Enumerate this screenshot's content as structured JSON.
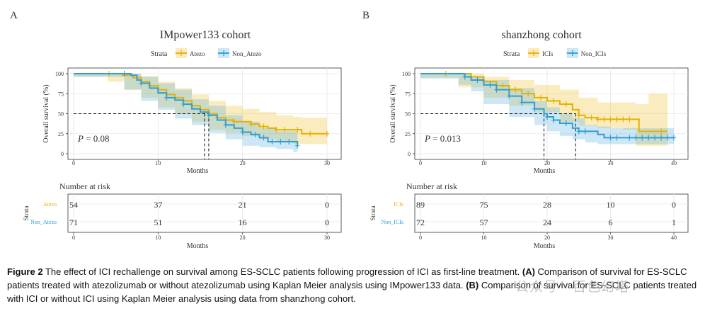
{
  "colors": {
    "atezo": "#E6B000",
    "non_atezo": "#2E9FD6",
    "fill_atezo": "rgba(240,200,70,0.35)",
    "fill_non": "rgba(90,175,225,0.30)",
    "grid": "#e6e6e6"
  },
  "panels": [
    {
      "letter": "A",
      "title": "IMpower133 cohort",
      "strata_label": "Strata",
      "p_label": "P",
      "p_value": "= 0.08",
      "risk_title": "Number at risk",
      "risk_strata_label": "Strata"
    },
    {
      "letter": "B",
      "title": "shanzhong cohort",
      "strata_label": "Strata",
      "p_label": "P",
      "p_value": "= 0.013",
      "risk_title": "Number at risk",
      "risk_strata_label": "Strata"
    }
  ],
  "chart_data": [
    {
      "type": "line",
      "subtype": "kaplan-meier",
      "title": "IMpower133 cohort",
      "xlabel": "Months",
      "ylabel": "Overall survival (%)",
      "xlim": [
        0,
        30
      ],
      "ylim": [
        0,
        100
      ],
      "xticks": [
        0,
        10,
        20,
        30
      ],
      "yticks": [
        0,
        25,
        50,
        75,
        100
      ],
      "grid": true,
      "legend": "top",
      "median": [
        {
          "series": "Atezo",
          "x": 16.0
        },
        {
          "series": "Non_Atezo",
          "x": 15.5
        }
      ],
      "series": [
        {
          "name": "Atezo",
          "color_key": "atezo",
          "points": [
            [
              0,
              100
            ],
            [
              4,
              100
            ],
            [
              5.8,
              98
            ],
            [
              7,
              95
            ],
            [
              8,
              90
            ],
            [
              9,
              85
            ],
            [
              10,
              80
            ],
            [
              11,
              74
            ],
            [
              12,
              70
            ],
            [
              13,
              66
            ],
            [
              14,
              60
            ],
            [
              15,
              55
            ],
            [
              16,
              50
            ],
            [
              17,
              45
            ],
            [
              18,
              42
            ],
            [
              19,
              40
            ],
            [
              20,
              40
            ],
            [
              21,
              37
            ],
            [
              22,
              34
            ],
            [
              23,
              32
            ],
            [
              24,
              30
            ],
            [
              26,
              30
            ],
            [
              27,
              25
            ],
            [
              30,
              25
            ]
          ],
          "ci_upper": [
            [
              0,
              100
            ],
            [
              4,
              100
            ],
            [
              6,
              100
            ],
            [
              8,
              97
            ],
            [
              10,
              90
            ],
            [
              12,
              82
            ],
            [
              14,
              74
            ],
            [
              16,
              66
            ],
            [
              18,
              60
            ],
            [
              20,
              56
            ],
            [
              22,
              52
            ],
            [
              24,
              48
            ],
            [
              26,
              46
            ],
            [
              27,
              45
            ],
            [
              30,
              45
            ]
          ],
          "ci_lower": [
            [
              0,
              100
            ],
            [
              4,
              96
            ],
            [
              6,
              90
            ],
            [
              8,
              80
            ],
            [
              10,
              70
            ],
            [
              12,
              58
            ],
            [
              14,
              50
            ],
            [
              16,
              40
            ],
            [
              18,
              30
            ],
            [
              20,
              26
            ],
            [
              22,
              22
            ],
            [
              24,
              18
            ],
            [
              26,
              15
            ],
            [
              27,
              12
            ],
            [
              30,
              12
            ]
          ],
          "censor_x": [
            4.2,
            9,
            12,
            14,
            17,
            19,
            21,
            22.5,
            24,
            25,
            26.5,
            28,
            30
          ]
        },
        {
          "name": "Non_Atezo",
          "color_key": "non_atezo",
          "points": [
            [
              0,
              100
            ],
            [
              6,
              100
            ],
            [
              6.8,
              98
            ],
            [
              7.5,
              92
            ],
            [
              8,
              88
            ],
            [
              9,
              82
            ],
            [
              10,
              76
            ],
            [
              11,
              70
            ],
            [
              12,
              67
            ],
            [
              13,
              62
            ],
            [
              14,
              56
            ],
            [
              15,
              52
            ],
            [
              16,
              48
            ],
            [
              17,
              42
            ],
            [
              18,
              36
            ],
            [
              19,
              32
            ],
            [
              20,
              27
            ],
            [
              21,
              24
            ],
            [
              22,
              20
            ],
            [
              23,
              15
            ],
            [
              24,
              15
            ],
            [
              25,
              15
            ],
            [
              26,
              15
            ],
            [
              26.5,
              10
            ]
          ],
          "ci_upper": [
            [
              0,
              100
            ],
            [
              6,
              100
            ],
            [
              8,
              96
            ],
            [
              10,
              88
            ],
            [
              12,
              80
            ],
            [
              14,
              68
            ],
            [
              16,
              60
            ],
            [
              18,
              48
            ],
            [
              20,
              40
            ],
            [
              22,
              32
            ],
            [
              24,
              28
            ],
            [
              26,
              28
            ],
            [
              26.5,
              22
            ]
          ],
          "ci_lower": [
            [
              0,
              100
            ],
            [
              6,
              96
            ],
            [
              8,
              80
            ],
            [
              10,
              66
            ],
            [
              12,
              55
            ],
            [
              14,
              44
            ],
            [
              16,
              36
            ],
            [
              18,
              26
            ],
            [
              20,
              18
            ],
            [
              22,
              10
            ],
            [
              24,
              8
            ],
            [
              26,
              6
            ],
            [
              26.5,
              2
            ]
          ],
          "censor_x": [
            6,
            8,
            11,
            13,
            16,
            18,
            20,
            21.5,
            22.5,
            23.5,
            24.5,
            25.5,
            26.5
          ]
        }
      ],
      "risk_table": {
        "title": "Number at risk",
        "xticks": [
          0,
          10,
          20,
          30
        ],
        "rows": [
          {
            "strata": "Atezo",
            "values": [
              "54",
              "37",
              "21",
              "0"
            ]
          },
          {
            "strata": "Non_Atezo",
            "values": [
              "71",
              "51",
              "16",
              "0"
            ]
          }
        ]
      }
    },
    {
      "type": "line",
      "subtype": "kaplan-meier",
      "title": "shanzhong cohort",
      "xlabel": "Months",
      "ylabel": "Overall survival (%)",
      "xlim": [
        0,
        40
      ],
      "ylim": [
        0,
        100
      ],
      "xticks": [
        0,
        10,
        20,
        30,
        40
      ],
      "yticks": [
        0,
        25,
        50,
        75,
        100
      ],
      "grid": true,
      "legend": "top",
      "median": [
        {
          "series": "ICIs",
          "x": 24.5
        },
        {
          "series": "Non_ICIs",
          "x": 19.5
        }
      ],
      "series": [
        {
          "name": "ICIs",
          "color_key": "atezo",
          "points": [
            [
              0,
              100
            ],
            [
              6,
              100
            ],
            [
              8,
              96
            ],
            [
              10,
              90
            ],
            [
              12,
              85
            ],
            [
              14,
              80
            ],
            [
              16,
              75
            ],
            [
              18,
              70
            ],
            [
              20,
              66
            ],
            [
              22,
              62
            ],
            [
              24,
              55
            ],
            [
              25,
              48
            ],
            [
              26,
              45
            ],
            [
              28,
              43
            ],
            [
              30,
              43
            ],
            [
              34,
              43
            ],
            [
              34.5,
              28
            ],
            [
              39,
              28
            ]
          ],
          "ci_upper": [
            [
              0,
              100
            ],
            [
              6,
              100
            ],
            [
              10,
              96
            ],
            [
              14,
              92
            ],
            [
              18,
              86
            ],
            [
              22,
              80
            ],
            [
              25,
              70
            ],
            [
              28,
              64
            ],
            [
              32,
              64
            ],
            [
              34,
              62
            ],
            [
              36,
              75
            ],
            [
              39,
              75
            ]
          ],
          "ci_lower": [
            [
              0,
              100
            ],
            [
              6,
              95
            ],
            [
              10,
              83
            ],
            [
              14,
              70
            ],
            [
              18,
              60
            ],
            [
              22,
              52
            ],
            [
              25,
              40
            ],
            [
              28,
              35
            ],
            [
              32,
              32
            ],
            [
              34,
              30
            ],
            [
              36,
              10
            ],
            [
              39,
              10
            ]
          ],
          "censor_x": [
            4,
            8,
            10,
            13,
            15,
            17,
            19,
            21,
            23,
            25,
            27,
            28,
            29,
            30,
            31,
            32,
            33,
            38
          ]
        },
        {
          "name": "Non_ICIs",
          "color_key": "non_atezo",
          "points": [
            [
              0,
              100
            ],
            [
              6,
              100
            ],
            [
              7,
              96
            ],
            [
              8,
              92
            ],
            [
              10,
              86
            ],
            [
              12,
              80
            ],
            [
              14,
              72
            ],
            [
              16,
              64
            ],
            [
              18,
              56
            ],
            [
              19.5,
              50
            ],
            [
              20,
              46
            ],
            [
              21,
              42
            ],
            [
              22,
              38
            ],
            [
              24,
              32
            ],
            [
              25,
              28
            ],
            [
              28,
              24
            ],
            [
              29,
              20
            ],
            [
              32,
              20
            ],
            [
              40,
              20
            ]
          ],
          "ci_upper": [
            [
              0,
              100
            ],
            [
              6,
              100
            ],
            [
              8,
              96
            ],
            [
              10,
              92
            ],
            [
              14,
              82
            ],
            [
              18,
              66
            ],
            [
              20,
              58
            ],
            [
              22,
              50
            ],
            [
              24,
              44
            ],
            [
              26,
              36
            ],
            [
              28,
              34
            ],
            [
              30,
              32
            ],
            [
              40,
              34
            ]
          ],
          "ci_lower": [
            [
              0,
              100
            ],
            [
              6,
              94
            ],
            [
              8,
              86
            ],
            [
              10,
              78
            ],
            [
              14,
              62
            ],
            [
              18,
              46
            ],
            [
              20,
              36
            ],
            [
              22,
              28
            ],
            [
              24,
              22
            ],
            [
              26,
              18
            ],
            [
              28,
              14
            ],
            [
              30,
              12
            ],
            [
              40,
              12
            ]
          ],
          "censor_x": [
            7,
            9,
            11,
            12,
            14,
            16,
            18,
            20,
            21,
            23,
            25,
            26,
            30,
            31,
            33,
            34,
            35,
            36,
            37,
            38,
            39,
            40
          ]
        }
      ],
      "risk_table": {
        "title": "Number at risk",
        "xticks": [
          0,
          10,
          20,
          30,
          40
        ],
        "rows": [
          {
            "strata": "ICIs",
            "values": [
              "89",
              "75",
              "28",
              "10",
              "0"
            ]
          },
          {
            "strata": "Non_ICIs",
            "values": [
              "72",
              "57",
              "24",
              "6",
              "1"
            ]
          }
        ]
      }
    }
  ],
  "caption": {
    "figure_label": "Figure 2",
    "text_1": " The effect of ICI rechallenge on survival among ES-SCLC patients following progression of ICI as first-line treatment. ",
    "a_label": "(A)",
    "text_2": " Comparison of survival for ES-SCLC patients treated with atezolizumab or without atezolizumab using Kaplan Meier analysis using IMpower133 data. ",
    "b_label": "(B)",
    "text_3": " Comparison of survival for ES-SCLC patients treated with ICI or without ICI using Kaplan Meier analysis using data from shanzhong cohort."
  },
  "watermark": "公众号 · 百色幻塔"
}
